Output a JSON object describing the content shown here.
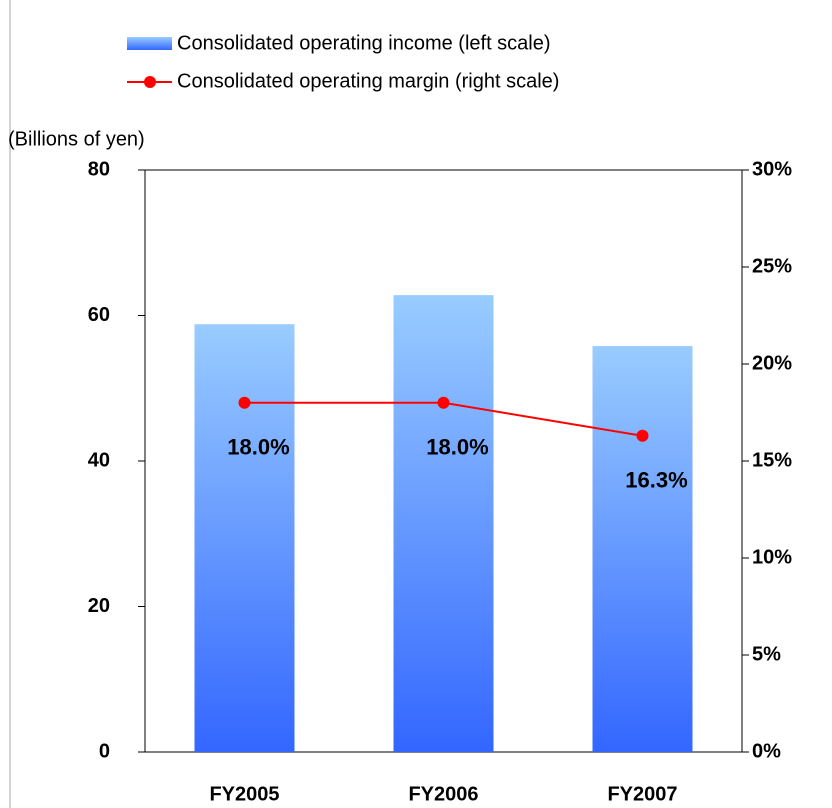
{
  "chart_data": {
    "type": "bar-line",
    "y_label": "(Billions of yen)",
    "categories": [
      "FY2005",
      "FY2006",
      "FY2007"
    ],
    "series": [
      {
        "name": "Consolidated operating income (left scale)",
        "type": "bar",
        "color": "#3366ff",
        "color_top": "#99ccff",
        "values": [
          58.8,
          62.8,
          55.8
        ]
      },
      {
        "name": "Consolidated operating margin (right scale)",
        "type": "line",
        "axis": "y2",
        "color": "#ff0000",
        "values": [
          18.0,
          18.0,
          16.3
        ],
        "value_labels": [
          "18.0%",
          "18.0%",
          "16.3%"
        ]
      }
    ],
    "ylim": [
      0,
      80
    ],
    "yticks": [
      0,
      20,
      40,
      60,
      80
    ],
    "y2lim": [
      0,
      30
    ],
    "y2ticks": [
      {
        "value": 0,
        "label": "0%"
      },
      {
        "value": 5,
        "label": "5%"
      },
      {
        "value": 10,
        "label": "10%"
      },
      {
        "value": 15,
        "label": "15%"
      },
      {
        "value": 20,
        "label": "20%"
      },
      {
        "value": 25,
        "label": "25%"
      },
      {
        "value": 30,
        "label": "30%"
      }
    ]
  }
}
